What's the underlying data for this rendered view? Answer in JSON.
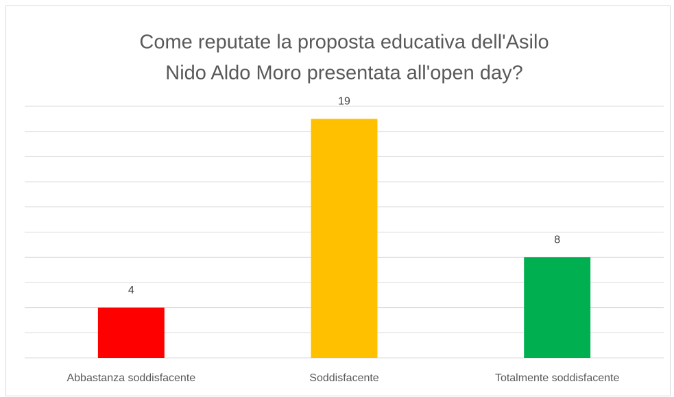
{
  "chart_data": {
    "type": "bar",
    "title": [
      "Come reputate la proposta educativa dell'Asilo",
      "Nido Aldo Moro presentata all'open day?"
    ],
    "categories": [
      "Abbastanza soddisfacente",
      "Soddisfacente",
      "Totalmente soddisfacente"
    ],
    "values": [
      4,
      19,
      8
    ],
    "colors": [
      "#ff0000",
      "#ffc000",
      "#00b050"
    ],
    "ylim": [
      0,
      20
    ],
    "yticks": [
      0,
      2,
      4,
      6,
      8,
      10,
      12,
      14,
      16,
      18,
      20
    ],
    "show_ytick_labels": false,
    "grid": true
  }
}
